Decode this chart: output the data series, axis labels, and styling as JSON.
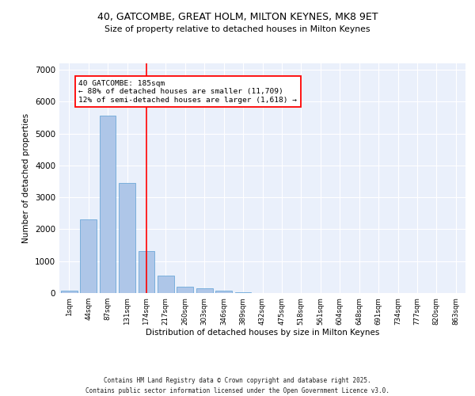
{
  "title1": "40, GATCOMBE, GREAT HOLM, MILTON KEYNES, MK8 9ET",
  "title2": "Size of property relative to detached houses in Milton Keynes",
  "xlabel": "Distribution of detached houses by size in Milton Keynes",
  "ylabel": "Number of detached properties",
  "categories": [
    "1sqm",
    "44sqm",
    "87sqm",
    "131sqm",
    "174sqm",
    "217sqm",
    "260sqm",
    "303sqm",
    "346sqm",
    "389sqm",
    "432sqm",
    "475sqm",
    "518sqm",
    "561sqm",
    "604sqm",
    "648sqm",
    "691sqm",
    "734sqm",
    "777sqm",
    "820sqm",
    "863sqm"
  ],
  "values": [
    70,
    2300,
    5550,
    3450,
    1310,
    540,
    210,
    155,
    80,
    35,
    10,
    5,
    5,
    2,
    2,
    1,
    1,
    1,
    1,
    1,
    1
  ],
  "bar_color": "#aec6e8",
  "bar_edge_color": "#5a9fd4",
  "bg_color": "#eaf0fb",
  "grid_color": "#ffffff",
  "vline_x": 4,
  "vline_color": "red",
  "annotation_text": "40 GATCOMBE: 185sqm\n← 88% of detached houses are smaller (11,709)\n12% of semi-detached houses are larger (1,618) →",
  "ylim": [
    0,
    7200
  ],
  "yticks": [
    0,
    1000,
    2000,
    3000,
    4000,
    5000,
    6000,
    7000
  ],
  "footer1": "Contains HM Land Registry data © Crown copyright and database right 2025.",
  "footer2": "Contains public sector information licensed under the Open Government Licence v3.0."
}
